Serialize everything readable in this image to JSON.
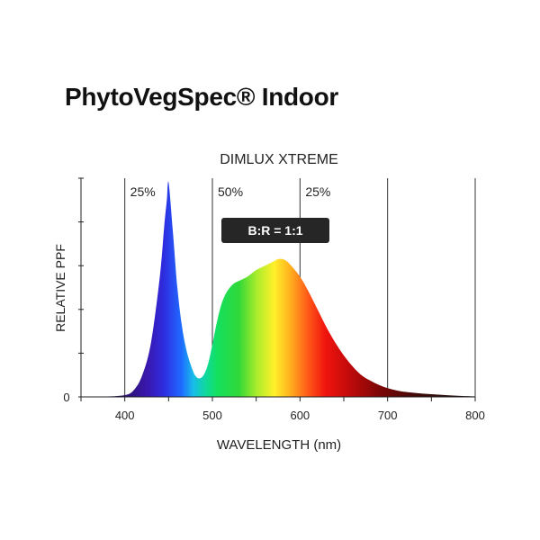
{
  "page": {
    "title": "PhytoVegSpec® Indoor"
  },
  "chart_data": {
    "type": "area",
    "title": "DIMLUX XTREME",
    "xlabel": "WAVELENGTH (nm)",
    "ylabel": "RELATIVE PPF",
    "xlim": [
      350,
      800
    ],
    "ylim": [
      0,
      1.0
    ],
    "x_ticks": [
      400,
      500,
      600,
      700,
      800
    ],
    "y_ticks": [
      0
    ],
    "band_lines": [
      400,
      500,
      600,
      700
    ],
    "band_labels": [
      {
        "text": "25%",
        "range": [
          400,
          500
        ]
      },
      {
        "text": "50%",
        "range": [
          500,
          600
        ]
      },
      {
        "text": "25%",
        "range": [
          600,
          700
        ]
      }
    ],
    "annotation": "B:R = 1:1",
    "series": [
      {
        "x": [
          350,
          380,
          400,
          410,
          420,
          430,
          440,
          445,
          448,
          450,
          455,
          460,
          465,
          470,
          475,
          480,
          485,
          490,
          495,
          500,
          505,
          510,
          515,
          520,
          525,
          530,
          540,
          550,
          560,
          570,
          575,
          580,
          585,
          590,
          600,
          610,
          620,
          630,
          640,
          650,
          660,
          670,
          680,
          690,
          700,
          710,
          720,
          740,
          760,
          780,
          800
        ],
        "y": [
          0.0,
          0.002,
          0.008,
          0.03,
          0.1,
          0.25,
          0.55,
          0.78,
          0.9,
          0.98,
          0.75,
          0.5,
          0.33,
          0.22,
          0.15,
          0.1,
          0.085,
          0.1,
          0.15,
          0.24,
          0.34,
          0.42,
          0.47,
          0.5,
          0.52,
          0.53,
          0.55,
          0.58,
          0.6,
          0.62,
          0.63,
          0.63,
          0.62,
          0.6,
          0.55,
          0.48,
          0.4,
          0.32,
          0.25,
          0.19,
          0.14,
          0.1,
          0.075,
          0.055,
          0.04,
          0.03,
          0.023,
          0.015,
          0.01,
          0.005,
          0.002
        ]
      }
    ],
    "grid": false
  }
}
